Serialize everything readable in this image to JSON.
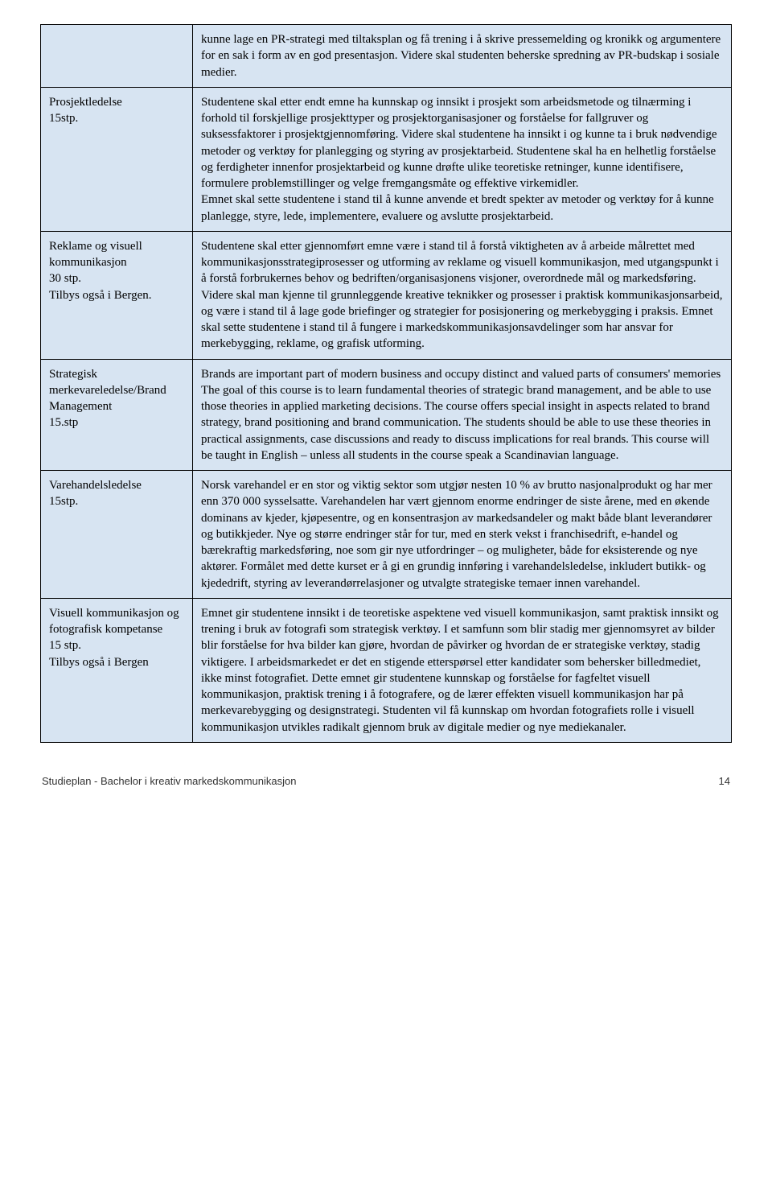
{
  "table": {
    "border_color": "#000000",
    "cell_bg": "#d7e4f2",
    "font_family": "Times New Roman",
    "font_size_pt": 12,
    "rows": [
      {
        "label_lines": [
          ""
        ],
        "desc": "kunne lage en PR-strategi med tiltaksplan og få trening i å skrive pressemelding og kronikk og argumentere for en sak i form av en god presentasjon. Videre skal studenten beherske spredning av PR-budskap i sosiale medier."
      },
      {
        "label_lines": [
          "Prosjektledelse",
          "15stp."
        ],
        "desc": "Studentene skal etter endt emne ha kunnskap og innsikt i prosjekt som arbeidsmetode og tilnærming i forhold til forskjellige prosjekttyper og prosjektorganisasjoner og forståelse for fallgruver og suksessfaktorer i prosjektgjennomføring.  Videre skal studentene ha innsikt i og kunne ta i bruk nødvendige metoder og verktøy for planlegging og styring av prosjektarbeid. Studentene skal ha en helhetlig forståelse og ferdigheter innenfor prosjektarbeid og kunne drøfte ulike teoretiske retninger, kunne identifisere, formulere problemstillinger og velge fremgangsmåte og effektive virkemidler.\nEmnet skal sette studentene i stand til å kunne anvende et bredt spekter av metoder og verktøy for å kunne planlegge, styre, lede, implementere, evaluere og avslutte prosjektarbeid."
      },
      {
        "label_lines": [
          "Reklame og visuell kommunikasjon",
          "30 stp.",
          "",
          "Tilbys også i Bergen."
        ],
        "desc": "Studentene skal etter gjennomført emne være i stand til å forstå viktigheten av å arbeide målrettet med kommunikasjonsstrategiprosesser og utforming av reklame og visuell kommunikasjon, med utgangspunkt i å forstå forbrukernes behov og bedriften/organisasjonens visjoner, overordnede mål og markedsføring. Videre skal man kjenne til grunnleggende kreative teknikker og prosesser i praktisk kommunikasjonsarbeid, og være i stand til å lage gode briefinger og strategier for posisjonering og merkebygging i praksis. Emnet skal sette studentene i stand til å fungere i markedskommunikasjonsavdelinger som har ansvar for merkebygging, reklame, og grafisk utforming."
      },
      {
        "label_lines": [
          "Strategisk merkevareledelse/Brand Management",
          "15.stp"
        ],
        "desc": "Brands are important part of modern business and occupy distinct and valued parts of consumers' memories The goal of this course is to learn fundamental theories of strategic brand management, and be able to use those theories in applied marketing decisions. The course offers special insight in aspects related to brand strategy, brand positioning and brand communication. The students should be able to use these theories in practical assignments, case discussions and ready to discuss implications for real brands. This course will be taught in English – unless all students in the course speak a Scandinavian language."
      },
      {
        "label_lines": [
          "Varehandelsledelse",
          " 15stp."
        ],
        "desc": "Norsk varehandel er en stor og viktig sektor som utgjør nesten 10 % av brutto nasjonalprodukt og har mer enn 370 000 sysselsatte. Varehandelen har vært gjennom enorme endringer de siste årene, med en økende dominans av kjeder, kjøpesentre,  og en konsentrasjon av markedsandeler og makt både blant leverandører og butikkjeder. Nye og større endringer står for tur, med en sterk vekst i franchisedrift, e-handel og bærekraftig markedsføring, noe som gir nye utfordringer – og muligheter, både for eksisterende og nye aktører. Formålet med dette kurset er å gi en grundig innføring i varehandelsledelse, inkludert butikk- og kjededrift, styring av leverandørrelasjoner og utvalgte strategiske temaer innen varehandel."
      },
      {
        "label_lines": [
          "Visuell kommunikasjon og fotografisk kompetanse",
          "15 stp.",
          "",
          "Tilbys også i Bergen"
        ],
        "desc": "Emnet gir studentene innsikt i de teoretiske aspektene ved visuell kommunikasjon, samt praktisk innsikt og trening i bruk av fotografi som strategisk verktøy. I et samfunn som blir stadig mer gjennomsyret av bilder blir forståelse for hva bilder kan gjøre, hvordan de påvirker og hvordan de er strategiske verktøy, stadig viktigere. I arbeidsmarkedet er det en stigende etterspørsel etter kandidater som behersker billedmediet, ikke minst fotografiet. Dette emnet gir studentene kunnskap og forståelse for fagfeltet visuell kommunikasjon, praktisk trening i å fotografere, og de lærer effekten visuell kommunikasjon har på merkevarebygging og designstrategi. Studenten vil få kunnskap om hvordan fotografiets rolle i visuell kommunikasjon utvikles radikalt gjennom bruk av digitale medier og nye mediekanaler."
      }
    ]
  },
  "footer": {
    "text": "Studieplan - Bachelor i kreativ markedskommunikasjon",
    "page_number": "14",
    "font_family": "Arial",
    "font_size_pt": 10,
    "color": "#333333"
  }
}
